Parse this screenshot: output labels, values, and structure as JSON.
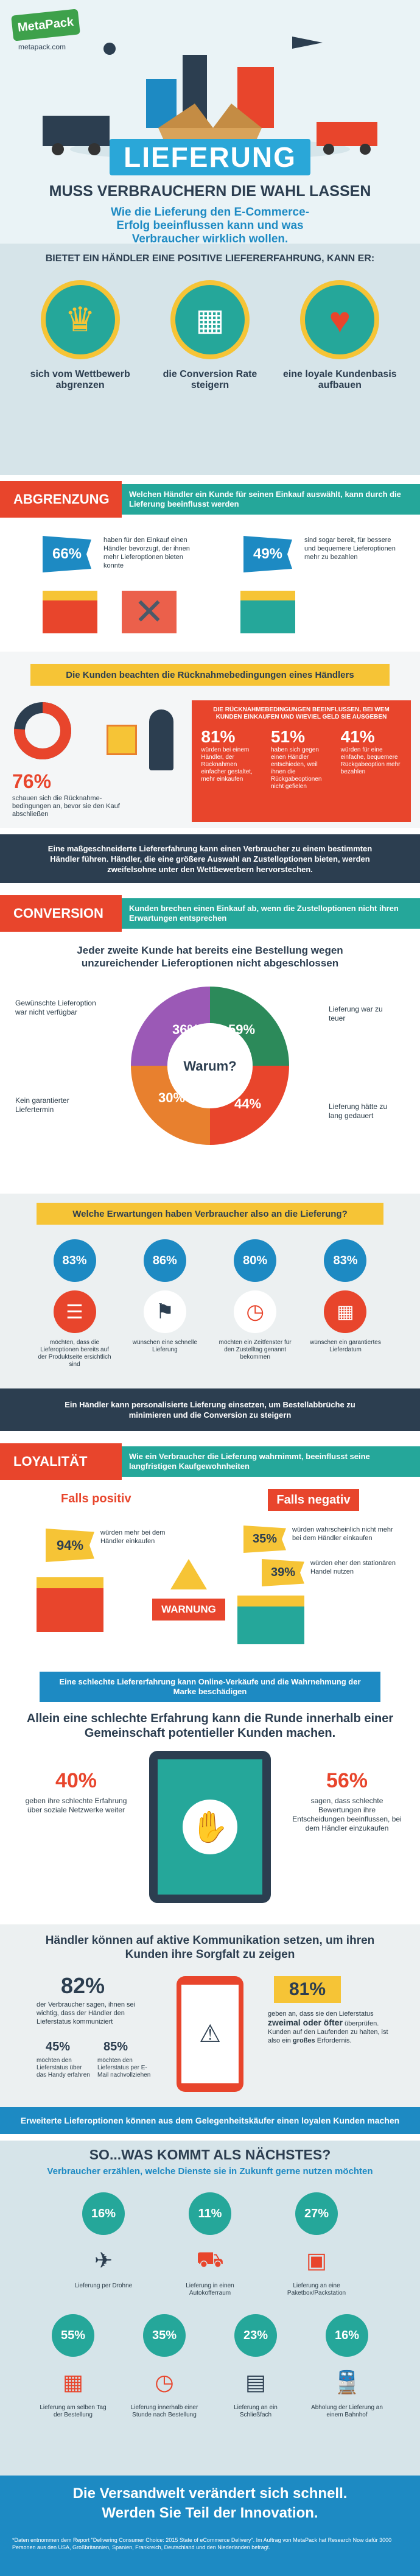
{
  "colors": {
    "navy": "#2c3e50",
    "teal": "#25a79a",
    "red": "#e8452c",
    "yellow": "#f6c436",
    "green": "#3ea14b",
    "blue": "#1d8ac3",
    "orange": "#e8802e",
    "purple": "#9b59b6",
    "grey": "#ecf0f1"
  },
  "header": {
    "logo": "MetaPack",
    "url": "metapack.com",
    "title": "LIEFERUNG",
    "subtitle": "MUSS VERBRAUCHERN DIE WAHL LASSEN",
    "intro": "Wie die Lieferung den E-Commerce-Erfolg beeinflussen kann und was Verbraucher wirklich wollen."
  },
  "benefits": {
    "heading": "BIETET EIN HÄNDLER EINE POSITIVE LIEFERERFAHRUNG, KANN ER:",
    "items": [
      "sich vom Wettbewerb abgrenzen",
      "die Conversion Rate steigern",
      "eine loyale Kundenbasis aufbauen"
    ]
  },
  "abgrenzung": {
    "title": "ABGRENZUNG",
    "question": "Welchen Händler ein Kunde für seinen Einkauf auswählt, kann durch die Lieferung beeinflusst werden",
    "stat1": {
      "pct": "66%",
      "text": "haben für den Einkauf einen Händler bevorzugt, der ihnen mehr Lieferoptionen bieten konnte"
    },
    "stat2": {
      "pct": "49%",
      "text": "sind sogar bereit, für bessere und bequemere Lieferoptionen mehr zu bezahlen"
    },
    "returns_heading": "Die Kunden beachten die Rücknahmebedingungen eines Händlers",
    "returns_pct": "76%",
    "returns_text": "schauen sich die Rücknahme-bedingungen an, bevor sie den Kauf abschließen",
    "box_title": "DIE RÜCKNAHMEBEDINGUNGEN BEEINFLUSSEN, BEI WEM KUNDEN EINKAUFEN UND WIEVIEL GELD SIE AUSGEBEN",
    "box_stats": [
      {
        "pct": "81%",
        "text": "würden bei einem Händler, der Rücknahmen einfacher gestaltet, mehr einkaufen"
      },
      {
        "pct": "51%",
        "text": "haben sich gegen einen Händler entschieden, weil ihnen die Rückgabeoptionen nicht gefielen"
      },
      {
        "pct": "41%",
        "text": "würden für eine einfache, bequemere Rückgabeoption mehr bezahlen"
      }
    ],
    "banner": "Eine maßgeschneiderte Liefererfahrung kann einen Verbraucher zu einem bestimmten Händler führen. Händler, die eine größere Auswahl an Zustelloptionen bieten, werden zweifelsohne unter den Wettbewerbern hervorstechen."
  },
  "conversion": {
    "title": "CONVERSION",
    "question": "Kunden brechen einen Einkauf ab, wenn die Zustelloptionen nicht ihren Erwartungen entsprechen",
    "heading": "Jeder zweite Kunde hat bereits eine Bestellung wegen unzureichender Lieferoptionen nicht abgeschlossen",
    "donut_center": "Warum?",
    "segments": [
      {
        "pct": "59%",
        "label": "Lieferung war zu teuer",
        "color": "#2c8a5a"
      },
      {
        "pct": "44%",
        "label": "Lieferung hätte zu lang gedauert",
        "color": "#e8452c"
      },
      {
        "pct": "30%",
        "label": "Kein garantierter Liefertermin",
        "color": "#e8802e"
      },
      {
        "pct": "36%",
        "label": "Gewünschte Lieferoption war nicht verfügbar",
        "color": "#9b59b6"
      }
    ],
    "expect_heading": "Welche Erwartungen haben Verbraucher also an die Lieferung?",
    "expect": [
      {
        "pct": "83%",
        "text": "möchten, dass die Lieferoptionen bereits auf der Produktseite ersichtlich sind"
      },
      {
        "pct": "86%",
        "text": "wünschen eine schnelle Lieferung"
      },
      {
        "pct": "80%",
        "text": "möchten ein Zeitfenster für den Zustelltag genannt bekommen"
      },
      {
        "pct": "83%",
        "text": "wünschen ein garantiertes Lieferdatum"
      }
    ],
    "banner": "Ein Händler kann personalisierte Lieferung einsetzen, um Bestellabbrüche zu minimieren und die Conversion zu steigern"
  },
  "loyalitaet": {
    "title": "LOYALITÄT",
    "question": "Wie ein Verbraucher die Lieferung wahrnimmt, beeinflusst seine langfristigen Kaufgewohnheiten",
    "pos_label": "Falls positiv",
    "neg_label": "Falls negativ",
    "pos_pct": "94%",
    "pos_text": "würden mehr bei dem Händler einkaufen",
    "neg1_pct": "35%",
    "neg1_text": "würden wahrscheinlich nicht mehr bei dem Händler einkaufen",
    "neg2_pct": "39%",
    "neg2_text": "würden eher den stationären Handel nutzen",
    "warning": "WARNUNG",
    "banner": "Eine schlechte Liefererfahrung kann Online-Verkäufe und die Wahrnehmung der Marke beschädigen",
    "heading": "Allein eine schlechte Erfahrung kann die Runde innerhalb einer Gemeinschaft potentieller Kunden machen.",
    "left_pct": "40%",
    "left_text": "geben ihre schlechte Erfahrung über soziale Netzwerke weiter",
    "right_pct": "56%",
    "right_text": "sagen, dass schlechte Bewertungen ihre Entscheidungen beeinflussen, bei dem Händler einzukaufen"
  },
  "kommunikation": {
    "heading": "Händler können auf aktive Kommunikation setzen, um ihren Kunden ihre Sorgfalt zu zeigen",
    "left_pct": "82%",
    "left_text": "der Verbraucher sagen, ihnen sei wichtig, dass der Händler den Lieferstatus kommuniziert",
    "sub1_pct": "45%",
    "sub1_text": "möchten den Lieferstatus über das Handy erfahren",
    "sub2_pct": "85%",
    "sub2_text": "möchten den Lieferstatus per E-Mail nachvollziehen",
    "right_pct": "81%",
    "right_text1": "geben an, dass sie den Lieferstatus",
    "right_bold": "zweimal oder öfter",
    "right_text2": "überprüfen. Kunden auf den Laufenden zu halten, ist also ein",
    "right_bold2": "großes",
    "right_text3": "Erfordernis.",
    "banner": "Erweiterte Lieferoptionen können aus dem Gelegenheitskäufer einen loyalen Kunden machen"
  },
  "next": {
    "title": "SO...WAS KOMMT ALS NÄCHSTES?",
    "subtitle": "Verbraucher erzählen, welche Dienste sie in Zukunft gerne nutzen möchten",
    "row1": [
      {
        "pct": "16%",
        "text": "Lieferung per Drohne"
      },
      {
        "pct": "11%",
        "text": "Lieferung in einen Autokofferraum"
      },
      {
        "pct": "27%",
        "text": "Lieferung an eine Paketbox/Packstation"
      }
    ],
    "row2": [
      {
        "pct": "55%",
        "text": "Lieferung am selben Tag der Bestellung"
      },
      {
        "pct": "35%",
        "text": "Lieferung innerhalb einer Stunde nach Bestellung"
      },
      {
        "pct": "23%",
        "text": "Lieferung an ein Schließfach"
      },
      {
        "pct": "16%",
        "text": "Abholung der Lieferung an einem Bahnhof"
      }
    ]
  },
  "footer": {
    "line1": "Die Versandwelt verändert sich schnell.",
    "line2": "Werden Sie Teil der Innovation.",
    "note": "*Daten entnommen dem Report \"Delivering Consumer Choice: 2015 State of eCommerce Delivery\". Im Auftrag von MetaPack hat Research Now dafür 3000 Personen aus den USA, Großbritannien, Spanien, Frankreich, Deutschland und den Niederlanden befragt."
  }
}
